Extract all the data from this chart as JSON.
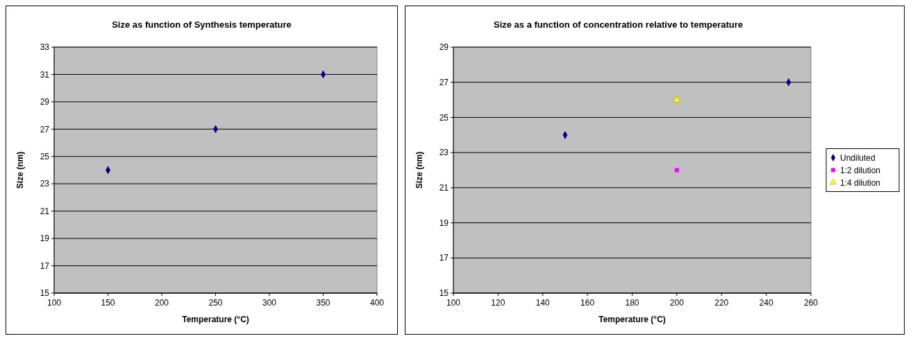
{
  "chart_data": [
    {
      "type": "scatter",
      "title": "Size as function of Synthesis temperature",
      "xlabel": "Temperature (°C)",
      "ylabel": "Size (nm)",
      "xlim": [
        100,
        400
      ],
      "xticks": [
        100,
        150,
        200,
        250,
        300,
        350,
        400
      ],
      "ylim": [
        15,
        33
      ],
      "yticks": [
        15,
        17,
        19,
        21,
        23,
        25,
        27,
        29,
        31,
        33
      ],
      "grid": "y",
      "marker": "diamond",
      "series": [
        {
          "color": "#000080",
          "x": [
            150,
            250,
            350
          ],
          "values": [
            24,
            27,
            31
          ]
        }
      ]
    },
    {
      "type": "scatter",
      "title": "Size as a function of concentration relative to temperature",
      "xlabel": "Temperature (°C)",
      "ylabel": "Size (nm)",
      "xlim": [
        100,
        260
      ],
      "xticks": [
        100,
        120,
        140,
        160,
        180,
        200,
        220,
        240,
        260
      ],
      "ylim": [
        15,
        29
      ],
      "yticks": [
        15,
        17,
        19,
        21,
        23,
        25,
        27,
        29
      ],
      "grid": "y",
      "legend": "right",
      "series": [
        {
          "name": "Undiluted",
          "color": "#000080",
          "marker": "diamond",
          "x": [
            150,
            250
          ],
          "values": [
            24,
            27
          ]
        },
        {
          "name": "1:2 dilution",
          "color": "#ff00ff",
          "marker": "square",
          "x": [
            200
          ],
          "values": [
            22
          ]
        },
        {
          "name": "1:4 dilution",
          "color": "#ffff00",
          "marker": "triangle",
          "x": [
            200
          ],
          "values": [
            26
          ]
        }
      ]
    }
  ]
}
